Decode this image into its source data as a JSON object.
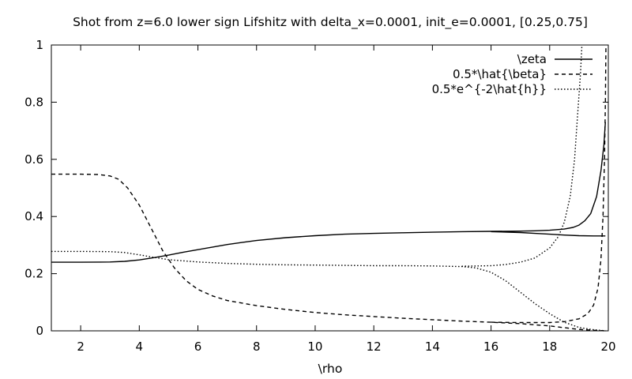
{
  "chart_data": {
    "type": "line",
    "title": "Shot from z=6.0 lower sign Lifshitz with delta_x=0.0001, init_e=0.0001, [0.25,0.75]",
    "xlabel": "\\rho",
    "ylabel": "",
    "xlim": [
      1,
      20
    ],
    "ylim": [
      0,
      1
    ],
    "xticks": [
      2,
      4,
      6,
      8,
      10,
      12,
      14,
      16,
      18,
      20
    ],
    "yticks": [
      0,
      0.2,
      0.4,
      0.6,
      0.8,
      1
    ],
    "xtick_labels": [
      "2",
      "4",
      "6",
      "8",
      "10",
      "12",
      "14",
      "16",
      "18",
      "20"
    ],
    "ytick_labels": [
      "0",
      "0.2",
      "0.4",
      "0.6",
      "0.8",
      "1"
    ],
    "grid": false,
    "legend_position": "top-right",
    "series": [
      {
        "name": "\\zeta",
        "style": "solid",
        "segments": [
          [
            [
              1,
              0.24
            ],
            [
              2,
              0.24
            ],
            [
              3,
              0.241
            ],
            [
              3.5,
              0.243
            ],
            [
              4,
              0.248
            ],
            [
              4.5,
              0.256
            ],
            [
              5,
              0.265
            ],
            [
              5.5,
              0.275
            ],
            [
              6,
              0.284
            ],
            [
              6.5,
              0.293
            ],
            [
              7,
              0.302
            ],
            [
              7.5,
              0.309
            ],
            [
              8,
              0.316
            ],
            [
              9,
              0.326
            ],
            [
              10,
              0.333
            ],
            [
              11,
              0.338
            ],
            [
              12,
              0.341
            ],
            [
              13,
              0.343
            ],
            [
              14,
              0.345
            ],
            [
              15,
              0.347
            ],
            [
              16,
              0.348
            ],
            [
              17,
              0.349
            ],
            [
              17.5,
              0.35
            ],
            [
              18,
              0.352
            ],
            [
              18.5,
              0.356
            ],
            [
              18.8,
              0.362
            ],
            [
              19,
              0.37
            ],
            [
              19.2,
              0.385
            ],
            [
              19.4,
              0.41
            ],
            [
              19.6,
              0.47
            ],
            [
              19.75,
              0.56
            ],
            [
              19.85,
              0.65
            ],
            [
              19.9,
              0.73
            ]
          ],
          [
            [
              16,
              0.347
            ],
            [
              17,
              0.344
            ],
            [
              17.5,
              0.341
            ],
            [
              18,
              0.338
            ],
            [
              18.5,
              0.335
            ],
            [
              19,
              0.333
            ],
            [
              19.5,
              0.332
            ],
            [
              19.9,
              0.332
            ]
          ]
        ]
      },
      {
        "name": "0.5*\\hat{\\beta}",
        "style": "dashed",
        "segments": [
          [
            [
              1,
              0.548
            ],
            [
              2,
              0.548
            ],
            [
              2.6,
              0.547
            ],
            [
              3,
              0.542
            ],
            [
              3.3,
              0.53
            ],
            [
              3.6,
              0.5
            ],
            [
              4,
              0.44
            ],
            [
              4.4,
              0.36
            ],
            [
              4.8,
              0.28
            ],
            [
              5.2,
              0.22
            ],
            [
              5.6,
              0.175
            ],
            [
              6,
              0.145
            ],
            [
              6.5,
              0.122
            ],
            [
              7,
              0.106
            ],
            [
              8,
              0.088
            ],
            [
              9,
              0.075
            ],
            [
              10,
              0.064
            ],
            [
              11,
              0.056
            ],
            [
              12,
              0.05
            ],
            [
              13,
              0.044
            ],
            [
              14,
              0.039
            ],
            [
              15,
              0.034
            ],
            [
              16,
              0.03
            ],
            [
              17,
              0.025
            ],
            [
              18,
              0.017
            ],
            [
              18.5,
              0.011
            ],
            [
              19,
              0.005
            ],
            [
              19.5,
              0.002
            ],
            [
              19.9,
              0.0
            ]
          ],
          [
            [
              16,
              0.03
            ],
            [
              17,
              0.029
            ],
            [
              18,
              0.029
            ],
            [
              18.5,
              0.032
            ],
            [
              19,
              0.042
            ],
            [
              19.3,
              0.06
            ],
            [
              19.5,
              0.09
            ],
            [
              19.65,
              0.15
            ],
            [
              19.75,
              0.25
            ],
            [
              19.82,
              0.4
            ],
            [
              19.87,
              0.6
            ],
            [
              19.9,
              0.8
            ],
            [
              19.92,
              1.0
            ]
          ]
        ]
      },
      {
        "name": "0.5*e^{-2\\hat{h}}",
        "style": "dotted",
        "segments": [
          [
            [
              1,
              0.278
            ],
            [
              2,
              0.278
            ],
            [
              3,
              0.277
            ],
            [
              3.5,
              0.274
            ],
            [
              4,
              0.266
            ],
            [
              4.5,
              0.257
            ],
            [
              5,
              0.249
            ],
            [
              6,
              0.241
            ],
            [
              7,
              0.236
            ],
            [
              8,
              0.233
            ],
            [
              9,
              0.231
            ],
            [
              10,
              0.23
            ],
            [
              11,
              0.229
            ],
            [
              12,
              0.228
            ],
            [
              13,
              0.228
            ],
            [
              14,
              0.227
            ],
            [
              15,
              0.225
            ],
            [
              15.5,
              0.22
            ],
            [
              16,
              0.205
            ],
            [
              16.5,
              0.175
            ],
            [
              17,
              0.135
            ],
            [
              17.5,
              0.095
            ],
            [
              18,
              0.06
            ],
            [
              18.5,
              0.03
            ],
            [
              19,
              0.012
            ],
            [
              19.5,
              0.004
            ],
            [
              19.9,
              0.0
            ]
          ],
          [
            [
              15,
              0.226
            ],
            [
              16,
              0.228
            ],
            [
              16.5,
              0.232
            ],
            [
              17,
              0.24
            ],
            [
              17.5,
              0.255
            ],
            [
              18,
              0.29
            ],
            [
              18.3,
              0.33
            ],
            [
              18.5,
              0.38
            ],
            [
              18.7,
              0.47
            ],
            [
              18.85,
              0.6
            ],
            [
              18.95,
              0.75
            ],
            [
              19.05,
              0.9
            ],
            [
              19.1,
              1.0
            ]
          ]
        ]
      }
    ]
  }
}
